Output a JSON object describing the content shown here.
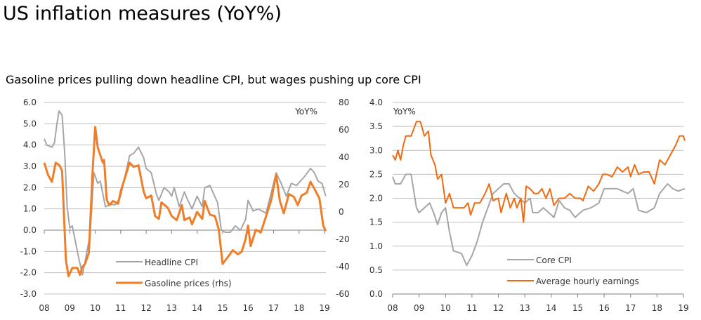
{
  "title": "US inflation measures (YoY%)",
  "subtitle": "Gasoline prices pulling down headline CPI, but wages pushing up core CPI",
  "chart_data": [
    {
      "type": "line",
      "unit_label": "YoY%",
      "x_ticks": [
        "08",
        "09",
        "10",
        "11",
        "12",
        "13",
        "14",
        "15",
        "16",
        "17",
        "18",
        "19"
      ],
      "xlim": [
        2008,
        2019
      ],
      "ylim": [
        -3,
        6
      ],
      "y_ticks": [
        "6.0",
        "5.0",
        "4.0",
        "3.0",
        "2.0",
        "1.0",
        "0.0",
        "-1.0",
        "-2.0",
        "-3.0"
      ],
      "y2lim": [
        -60,
        80
      ],
      "y2_ticks": [
        "80",
        "60",
        "40",
        "20",
        "0",
        "-20",
        "-40",
        "-60"
      ],
      "legend_position": "bottom-center",
      "series": [
        {
          "name": "Headline CPI",
          "axis": "left",
          "color": "#a6a6a6",
          "x": [
            2008.0,
            2008.1,
            2008.3,
            2008.4,
            2008.5,
            2008.58,
            2008.7,
            2008.8,
            2008.9,
            2009.0,
            2009.1,
            2009.2,
            2009.35,
            2009.5,
            2009.6,
            2009.8,
            2009.9,
            2009.95,
            2010.1,
            2010.2,
            2010.4,
            2010.6,
            2010.8,
            2011.0,
            2011.2,
            2011.35,
            2011.5,
            2011.7,
            2011.9,
            2012.0,
            2012.2,
            2012.4,
            2012.5,
            2012.7,
            2012.9,
            2013.0,
            2013.1,
            2013.3,
            2013.5,
            2013.6,
            2013.8,
            2014.0,
            2014.2,
            2014.3,
            2014.5,
            2014.8,
            2014.95,
            2015.1,
            2015.3,
            2015.5,
            2015.7,
            2015.9,
            2016.0,
            2016.2,
            2016.4,
            2016.7,
            2016.9,
            2017.1,
            2017.3,
            2017.5,
            2017.7,
            2017.9,
            2018.2,
            2018.45,
            2018.6,
            2018.75,
            2018.9,
            2019.05
          ],
          "values": [
            4.3,
            4.0,
            3.9,
            4.1,
            5.0,
            5.6,
            5.4,
            3.7,
            1.1,
            0.1,
            0.2,
            -0.4,
            -1.3,
            -2.1,
            -1.5,
            -0.2,
            1.8,
            2.7,
            2.2,
            2.3,
            1.1,
            1.2,
            1.2,
            1.6,
            2.7,
            3.5,
            3.6,
            3.9,
            3.4,
            2.9,
            2.7,
            1.7,
            1.4,
            2.0,
            1.8,
            1.6,
            2.0,
            1.1,
            1.8,
            1.5,
            1.0,
            1.6,
            1.1,
            2.0,
            2.1,
            1.3,
            0.0,
            -0.1,
            -0.1,
            0.2,
            0.0,
            0.5,
            1.4,
            0.9,
            1.0,
            0.8,
            1.7,
            2.7,
            2.2,
            1.6,
            2.2,
            2.1,
            2.5,
            2.9,
            2.7,
            2.3,
            2.2,
            1.6
          ]
        },
        {
          "name": "Gasoline prices (rhs)",
          "axis": "right",
          "color": "#f07d27",
          "x": [
            2008.0,
            2008.15,
            2008.3,
            2008.45,
            2008.6,
            2008.7,
            2008.85,
            2008.95,
            2009.1,
            2009.3,
            2009.4,
            2009.5,
            2009.6,
            2009.75,
            2009.9,
            2010.0,
            2010.1,
            2010.3,
            2010.35,
            2010.45,
            2010.55,
            2010.7,
            2010.9,
            2011.0,
            2011.2,
            2011.35,
            2011.5,
            2011.7,
            2011.9,
            2012.0,
            2012.2,
            2012.35,
            2012.5,
            2012.6,
            2012.85,
            2013.0,
            2013.2,
            2013.4,
            2013.5,
            2013.7,
            2013.8,
            2014.0,
            2014.2,
            2014.3,
            2014.5,
            2014.7,
            2014.85,
            2015.0,
            2015.2,
            2015.4,
            2015.6,
            2015.75,
            2015.9,
            2016.0,
            2016.1,
            2016.3,
            2016.5,
            2016.9,
            2017.1,
            2017.25,
            2017.4,
            2017.6,
            2017.8,
            2017.95,
            2018.1,
            2018.3,
            2018.45,
            2018.6,
            2018.8,
            2018.95,
            2019.05
          ],
          "values": [
            36,
            27,
            22,
            36,
            34,
            30,
            -35,
            -47,
            -41,
            -41,
            -46,
            -40,
            -38,
            -30,
            30,
            62,
            47,
            36,
            38,
            9,
            5,
            8,
            6,
            15,
            27,
            36,
            33,
            34,
            15,
            10,
            12,
            -3,
            -5,
            7,
            3,
            -3,
            -6,
            5,
            -6,
            -4,
            -9,
            0,
            -5,
            8,
            -2,
            -3,
            -13,
            -38,
            -33,
            -28,
            -31,
            -29,
            -20,
            -10,
            -25,
            -13,
            -15,
            8,
            27,
            8,
            -1,
            13,
            11,
            5,
            12,
            14,
            22,
            17,
            10,
            -10,
            -14
          ]
        }
      ]
    },
    {
      "type": "line",
      "unit_label": "YoY%",
      "x_ticks": [
        "08",
        "09",
        "10",
        "11",
        "12",
        "13",
        "14",
        "15",
        "16",
        "17",
        "18",
        "19"
      ],
      "xlim": [
        2008,
        2019
      ],
      "ylim": [
        0,
        4
      ],
      "y_ticks": [
        "4.0",
        "3.5",
        "3.0",
        "2.5",
        "2.0",
        "1.5",
        "1.0",
        "0.5",
        "0.0"
      ],
      "legend_position": "bottom-center",
      "series": [
        {
          "name": "Core CPI",
          "color": "#a6a6a6",
          "x": [
            2008.0,
            2008.1,
            2008.3,
            2008.5,
            2008.7,
            2008.9,
            2009.0,
            2009.2,
            2009.4,
            2009.55,
            2009.7,
            2009.85,
            2010.0,
            2010.15,
            2010.3,
            2010.6,
            2010.8,
            2011.0,
            2011.2,
            2011.4,
            2011.6,
            2011.8,
            2012.0,
            2012.2,
            2012.4,
            2012.6,
            2012.8,
            2013.0,
            2013.2,
            2013.3,
            2013.5,
            2013.7,
            2013.9,
            2014.1,
            2014.3,
            2014.5,
            2014.7,
            2014.9,
            2015.2,
            2015.5,
            2015.8,
            2016.0,
            2016.2,
            2016.5,
            2016.7,
            2016.9,
            2017.1,
            2017.3,
            2017.6,
            2017.9,
            2018.1,
            2018.4,
            2018.6,
            2018.8,
            2019.05
          ],
          "values": [
            2.45,
            2.3,
            2.3,
            2.5,
            2.5,
            1.8,
            1.7,
            1.8,
            1.9,
            1.7,
            1.45,
            1.7,
            1.8,
            1.3,
            0.9,
            0.85,
            0.6,
            0.8,
            1.1,
            1.5,
            1.8,
            2.1,
            2.2,
            2.3,
            2.3,
            2.1,
            2.0,
            1.9,
            2.0,
            1.7,
            1.7,
            1.8,
            1.7,
            1.6,
            1.95,
            1.8,
            1.75,
            1.6,
            1.75,
            1.8,
            1.9,
            2.2,
            2.2,
            2.2,
            2.15,
            2.1,
            2.2,
            1.75,
            1.7,
            1.8,
            2.1,
            2.3,
            2.2,
            2.15,
            2.2
          ]
        },
        {
          "name": "Average hourly earnings",
          "color": "#f26a10",
          "x": [
            2008.0,
            2008.1,
            2008.2,
            2008.3,
            2008.4,
            2008.5,
            2008.7,
            2008.9,
            2009.05,
            2009.2,
            2009.35,
            2009.45,
            2009.6,
            2009.7,
            2009.85,
            2010.0,
            2010.15,
            2010.3,
            2010.5,
            2010.7,
            2010.85,
            2010.95,
            2011.1,
            2011.3,
            2011.5,
            2011.65,
            2011.8,
            2012.0,
            2012.1,
            2012.3,
            2012.45,
            2012.6,
            2012.7,
            2012.85,
            2012.95,
            2013.05,
            2013.2,
            2013.35,
            2013.5,
            2013.65,
            2013.8,
            2013.95,
            2014.1,
            2014.3,
            2014.5,
            2014.7,
            2014.9,
            2015.1,
            2015.2,
            2015.4,
            2015.6,
            2015.8,
            2015.95,
            2016.1,
            2016.3,
            2016.5,
            2016.7,
            2016.9,
            2017.0,
            2017.15,
            2017.3,
            2017.5,
            2017.7,
            2017.9,
            2018.1,
            2018.3,
            2018.5,
            2018.7,
            2018.85,
            2019.0,
            2019.05
          ],
          "values": [
            2.9,
            2.8,
            3.0,
            2.8,
            3.1,
            3.3,
            3.3,
            3.6,
            3.6,
            3.3,
            3.4,
            2.9,
            2.7,
            2.4,
            2.5,
            1.9,
            2.1,
            1.8,
            1.8,
            1.8,
            1.9,
            1.65,
            1.9,
            1.9,
            2.1,
            2.3,
            1.95,
            2.0,
            1.7,
            2.1,
            1.8,
            2.0,
            1.8,
            2.0,
            1.5,
            2.25,
            2.2,
            2.1,
            2.1,
            2.2,
            2.0,
            2.2,
            1.85,
            2.0,
            2.0,
            2.1,
            2.0,
            2.0,
            1.95,
            2.25,
            2.15,
            2.3,
            2.5,
            2.5,
            2.45,
            2.65,
            2.55,
            2.65,
            2.45,
            2.7,
            2.5,
            2.55,
            2.55,
            2.3,
            2.8,
            2.7,
            2.9,
            3.1,
            3.3,
            3.3,
            3.2
          ]
        }
      ]
    }
  ]
}
